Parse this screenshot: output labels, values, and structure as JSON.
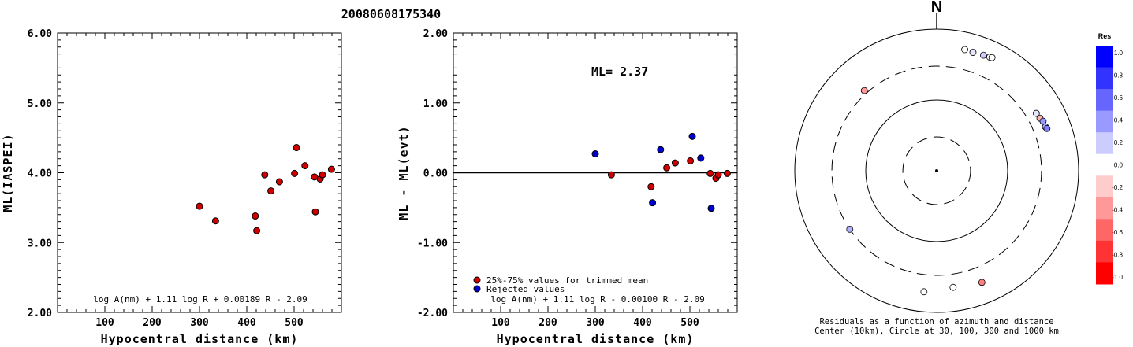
{
  "title": "20080608175340",
  "chart_data": [
    {
      "type": "scatter",
      "xlabel": "Hypocentral distance (km)",
      "ylabel": "ML(IASPEI)",
      "xlim": [
        0,
        600
      ],
      "ylim": [
        2.0,
        6.0
      ],
      "xticks": [
        100,
        200,
        300,
        400,
        500
      ],
      "xtick_labels": [
        "100",
        "200",
        "300",
        "400",
        "500"
      ],
      "yticks": [
        2.0,
        3.0,
        4.0,
        5.0,
        6.0
      ],
      "ytick_labels": [
        "2.00",
        "3.00",
        "4.00",
        "5.00",
        "6.00"
      ],
      "formula": "log A(nm) + 1.11 log R + 0.00189 R - 2.09",
      "series": [
        {
          "color": "#d00000",
          "points": [
            {
              "x": 300,
              "y": 3.52
            },
            {
              "x": 334,
              "y": 3.31
            },
            {
              "x": 418,
              "y": 3.38
            },
            {
              "x": 421,
              "y": 3.17
            },
            {
              "x": 438,
              "y": 3.97
            },
            {
              "x": 451,
              "y": 3.74
            },
            {
              "x": 469,
              "y": 3.87
            },
            {
              "x": 501,
              "y": 3.99
            },
            {
              "x": 505,
              "y": 4.36
            },
            {
              "x": 523,
              "y": 4.1
            },
            {
              "x": 543,
              "y": 3.94
            },
            {
              "x": 545,
              "y": 3.44
            },
            {
              "x": 555,
              "y": 3.91
            },
            {
              "x": 560,
              "y": 3.97
            },
            {
              "x": 579,
              "y": 4.05
            }
          ]
        }
      ]
    },
    {
      "type": "scatter",
      "xlabel": "Hypocentral distance (km)",
      "ylabel": "ML - ML(evt)",
      "xlim": [
        0,
        600
      ],
      "ylim": [
        -2.0,
        2.0
      ],
      "xticks": [
        100,
        200,
        300,
        400,
        500
      ],
      "xtick_labels": [
        "100",
        "200",
        "300",
        "400",
        "500"
      ],
      "yticks": [
        -2.0,
        -1.0,
        0.0,
        1.0,
        2.0
      ],
      "ytick_labels": [
        "-2.00",
        "-1.00",
        "0.00",
        "1.00",
        "2.00"
      ],
      "ml_text": "ML= 2.37",
      "formula": "log A(nm) + 1.11 log R - 0.00100 R - 2.09",
      "legend": [
        {
          "label": "25%-75% values for trimmed mean",
          "color": "#d00000"
        },
        {
          "label": "Rejected values",
          "color": "#0000cc"
        }
      ],
      "series": [
        {
          "color": "#d00000",
          "points": [
            {
              "x": 334,
              "y": -0.03
            },
            {
              "x": 418,
              "y": -0.2
            },
            {
              "x": 451,
              "y": 0.07
            },
            {
              "x": 469,
              "y": 0.14
            },
            {
              "x": 501,
              "y": 0.17
            },
            {
              "x": 543,
              "y": -0.01
            },
            {
              "x": 555,
              "y": -0.08
            },
            {
              "x": 560,
              "y": -0.03
            },
            {
              "x": 579,
              "y": -0.01
            }
          ]
        },
        {
          "color": "#0000cc",
          "points": [
            {
              "x": 300,
              "y": 0.27
            },
            {
              "x": 421,
              "y": -0.43
            },
            {
              "x": 438,
              "y": 0.33
            },
            {
              "x": 505,
              "y": 0.52
            },
            {
              "x": 523,
              "y": 0.21
            },
            {
              "x": 545,
              "y": -0.51
            }
          ]
        }
      ]
    },
    {
      "type": "scatter",
      "north_label": "N",
      "caption_line1": "Residuals as a function of azimuth and distance",
      "caption_line2": "Center (10km), Circle at 30, 100, 300 and 1000 km",
      "colorbar_title": "Res",
      "colorbar_ticks": [
        "1.0",
        "0.8",
        "0.6",
        "0.4",
        "0.2",
        "0.0",
        "-0.2",
        "-0.4",
        "-0.6",
        "-0.8",
        "-1.0"
      ],
      "colorbar_values": [
        1.0,
        0.8,
        0.6,
        0.4,
        0.2,
        0.0,
        -0.2,
        -0.4,
        -0.6,
        -0.8,
        -1.0
      ],
      "rings_km": [
        30,
        100,
        300,
        1000
      ],
      "stations": [
        {
          "azimuth_deg": 318,
          "distance_km": 334,
          "residual": -0.4
        },
        {
          "azimuth_deg": 13,
          "distance_km": 570,
          "residual": 0.0
        },
        {
          "azimuth_deg": 17,
          "distance_km": 560,
          "residual": 0.1
        },
        {
          "azimuth_deg": 22,
          "distance_km": 575,
          "residual": 0.2
        },
        {
          "azimuth_deg": 25,
          "distance_km": 590,
          "residual": 0.0
        },
        {
          "azimuth_deg": 26,
          "distance_km": 600,
          "residual": 0.0
        },
        {
          "azimuth_deg": 60,
          "distance_km": 418,
          "residual": 0.1
        },
        {
          "azimuth_deg": 63,
          "distance_km": 430,
          "residual": -0.3
        },
        {
          "azimuth_deg": 65,
          "distance_km": 451,
          "residual": 0.4
        },
        {
          "azimuth_deg": 68,
          "distance_km": 450,
          "residual": 0.3
        },
        {
          "azimuth_deg": 69,
          "distance_km": 462,
          "residual": 0.5
        },
        {
          "azimuth_deg": 236,
          "distance_km": 300,
          "residual": 0.3
        },
        {
          "azimuth_deg": 158,
          "distance_km": 501,
          "residual": -0.5
        },
        {
          "azimuth_deg": 172,
          "distance_km": 460,
          "residual": 0.0
        },
        {
          "azimuth_deg": 186,
          "distance_km": 523,
          "residual": 0.0
        }
      ]
    }
  ]
}
